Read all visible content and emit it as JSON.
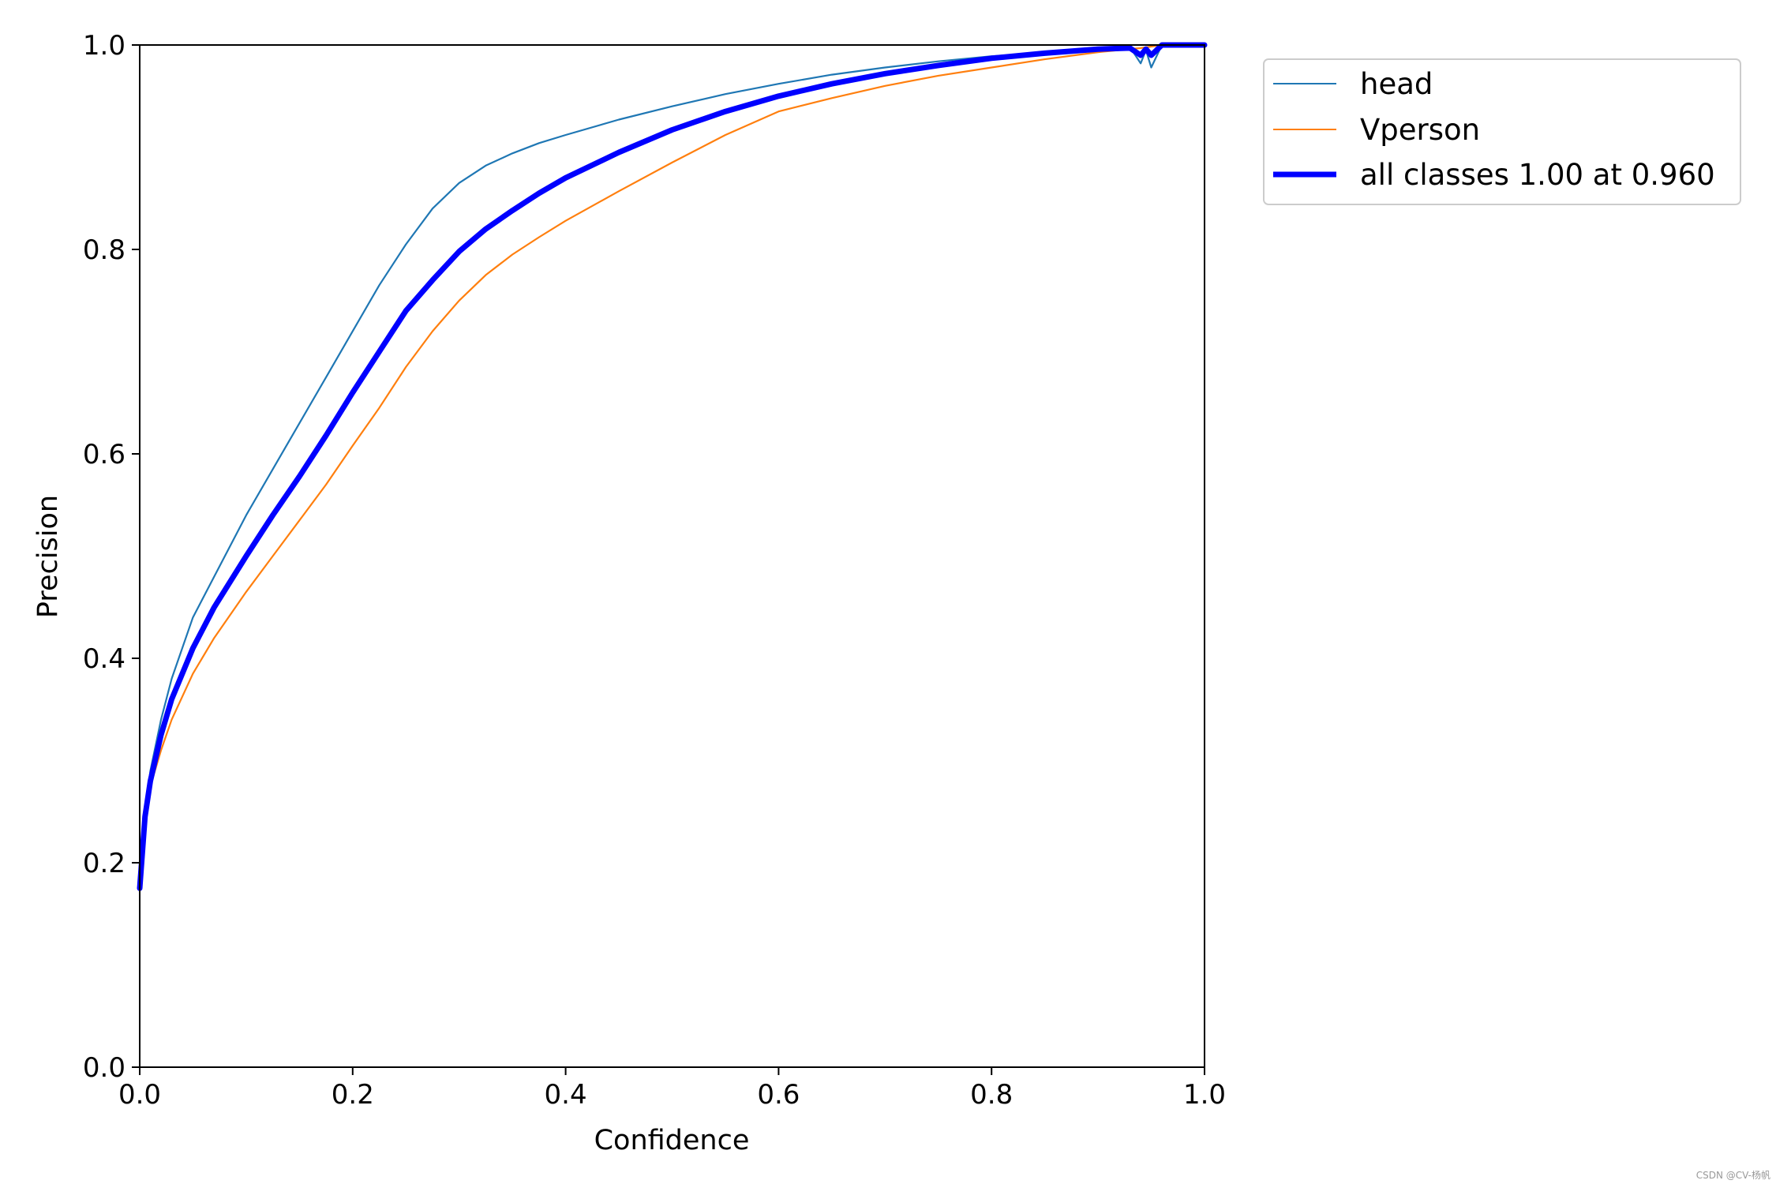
{
  "chart_data": {
    "type": "line",
    "title": "",
    "xlabel": "Confidence",
    "ylabel": "Precision",
    "xlim": [
      0.0,
      1.0
    ],
    "ylim": [
      0.0,
      1.0
    ],
    "xticks": [
      "0.0",
      "0.2",
      "0.4",
      "0.6",
      "0.8",
      "1.0"
    ],
    "yticks": [
      "0.0",
      "0.2",
      "0.4",
      "0.6",
      "0.8",
      "1.0"
    ],
    "grid": false,
    "legend_position": "outside-top-right",
    "series": [
      {
        "name": "head",
        "color": "#1f77b4",
        "x": [
          0.0,
          0.005,
          0.01,
          0.02,
          0.03,
          0.05,
          0.07,
          0.1,
          0.125,
          0.15,
          0.175,
          0.2,
          0.225,
          0.25,
          0.275,
          0.3,
          0.325,
          0.35,
          0.375,
          0.4,
          0.45,
          0.5,
          0.55,
          0.6,
          0.65,
          0.7,
          0.75,
          0.8,
          0.85,
          0.9,
          0.93,
          0.94,
          0.945,
          0.95,
          0.96,
          1.0
        ],
        "y": [
          0.18,
          0.25,
          0.29,
          0.34,
          0.38,
          0.44,
          0.48,
          0.54,
          0.585,
          0.63,
          0.675,
          0.72,
          0.765,
          0.805,
          0.84,
          0.865,
          0.882,
          0.894,
          0.904,
          0.912,
          0.927,
          0.94,
          0.952,
          0.962,
          0.971,
          0.978,
          0.984,
          0.989,
          0.992,
          0.996,
          0.998,
          0.982,
          0.995,
          0.978,
          1.0,
          1.0
        ]
      },
      {
        "name": "Vperson",
        "color": "#ff7f0e",
        "x": [
          0.0,
          0.005,
          0.01,
          0.02,
          0.03,
          0.05,
          0.07,
          0.1,
          0.125,
          0.15,
          0.175,
          0.2,
          0.225,
          0.25,
          0.275,
          0.3,
          0.325,
          0.35,
          0.375,
          0.4,
          0.45,
          0.5,
          0.55,
          0.6,
          0.65,
          0.7,
          0.75,
          0.8,
          0.85,
          0.9,
          0.94,
          0.96,
          1.0
        ],
        "y": [
          0.18,
          0.24,
          0.275,
          0.31,
          0.34,
          0.385,
          0.42,
          0.465,
          0.5,
          0.535,
          0.57,
          0.608,
          0.645,
          0.685,
          0.72,
          0.75,
          0.775,
          0.795,
          0.812,
          0.828,
          0.857,
          0.885,
          0.912,
          0.935,
          0.948,
          0.96,
          0.97,
          0.978,
          0.986,
          0.993,
          0.997,
          1.0,
          1.0
        ]
      },
      {
        "name": "all classes 1.00 at 0.960",
        "color": "#0000ff",
        "x": [
          0.0,
          0.005,
          0.01,
          0.02,
          0.03,
          0.05,
          0.07,
          0.1,
          0.125,
          0.15,
          0.175,
          0.2,
          0.225,
          0.25,
          0.275,
          0.3,
          0.325,
          0.35,
          0.375,
          0.4,
          0.45,
          0.5,
          0.55,
          0.6,
          0.65,
          0.7,
          0.75,
          0.8,
          0.85,
          0.9,
          0.93,
          0.94,
          0.945,
          0.95,
          0.96,
          1.0
        ],
        "y": [
          0.175,
          0.245,
          0.28,
          0.325,
          0.36,
          0.41,
          0.45,
          0.5,
          0.54,
          0.578,
          0.618,
          0.66,
          0.7,
          0.74,
          0.77,
          0.798,
          0.82,
          0.838,
          0.855,
          0.87,
          0.895,
          0.917,
          0.935,
          0.95,
          0.962,
          0.972,
          0.98,
          0.987,
          0.992,
          0.996,
          0.997,
          0.99,
          0.996,
          0.99,
          1.0,
          1.0
        ]
      }
    ]
  },
  "watermark": "CSDN @CV-杨帆"
}
